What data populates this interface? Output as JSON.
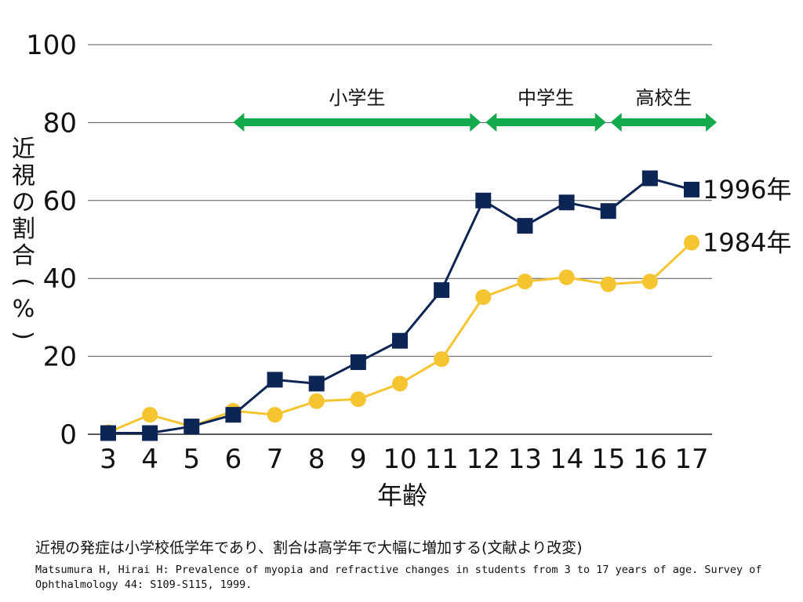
{
  "chart_data": {
    "type": "line",
    "xlabel": "年齢",
    "ylabel": "近視の割合(%)",
    "x": [
      3,
      4,
      5,
      6,
      7,
      8,
      9,
      10,
      11,
      12,
      13,
      14,
      15,
      16,
      17
    ],
    "ylim": [
      0,
      100
    ],
    "yticks": [
      0,
      20,
      40,
      60,
      80,
      100
    ],
    "grid": true,
    "series": [
      {
        "name": "1996年",
        "marker": "square",
        "color": "#0d2555",
        "values": [
          0.3,
          0.3,
          2,
          5,
          14,
          13,
          18.5,
          24,
          37,
          60,
          53.5,
          59.5,
          57.3,
          65.7,
          62.8
        ]
      },
      {
        "name": "1984年",
        "marker": "circle",
        "color": "#f6c431",
        "values": [
          0.5,
          5,
          2,
          6,
          5,
          8.5,
          9,
          13,
          19.3,
          35.2,
          39.2,
          40.3,
          38.5,
          39.2,
          49.2
        ]
      }
    ],
    "periods": [
      {
        "label": "小学生",
        "from": 6,
        "to": 12
      },
      {
        "label": "中学生",
        "from": 12,
        "to": 15
      },
      {
        "label": "高校生",
        "from": 15,
        "to": 17
      }
    ],
    "period_color": "#14a94a"
  },
  "caption": "近視の発症は小学校低学年であり、割合は高学年で大幅に増加する(文献より改変)",
  "citation": "Matsumura H, Hirai H: Prevalence of myopia and refractive changes in students from 3 to 17 years of age. Survey of Ophthalmology 44: S109-S115, 1999."
}
